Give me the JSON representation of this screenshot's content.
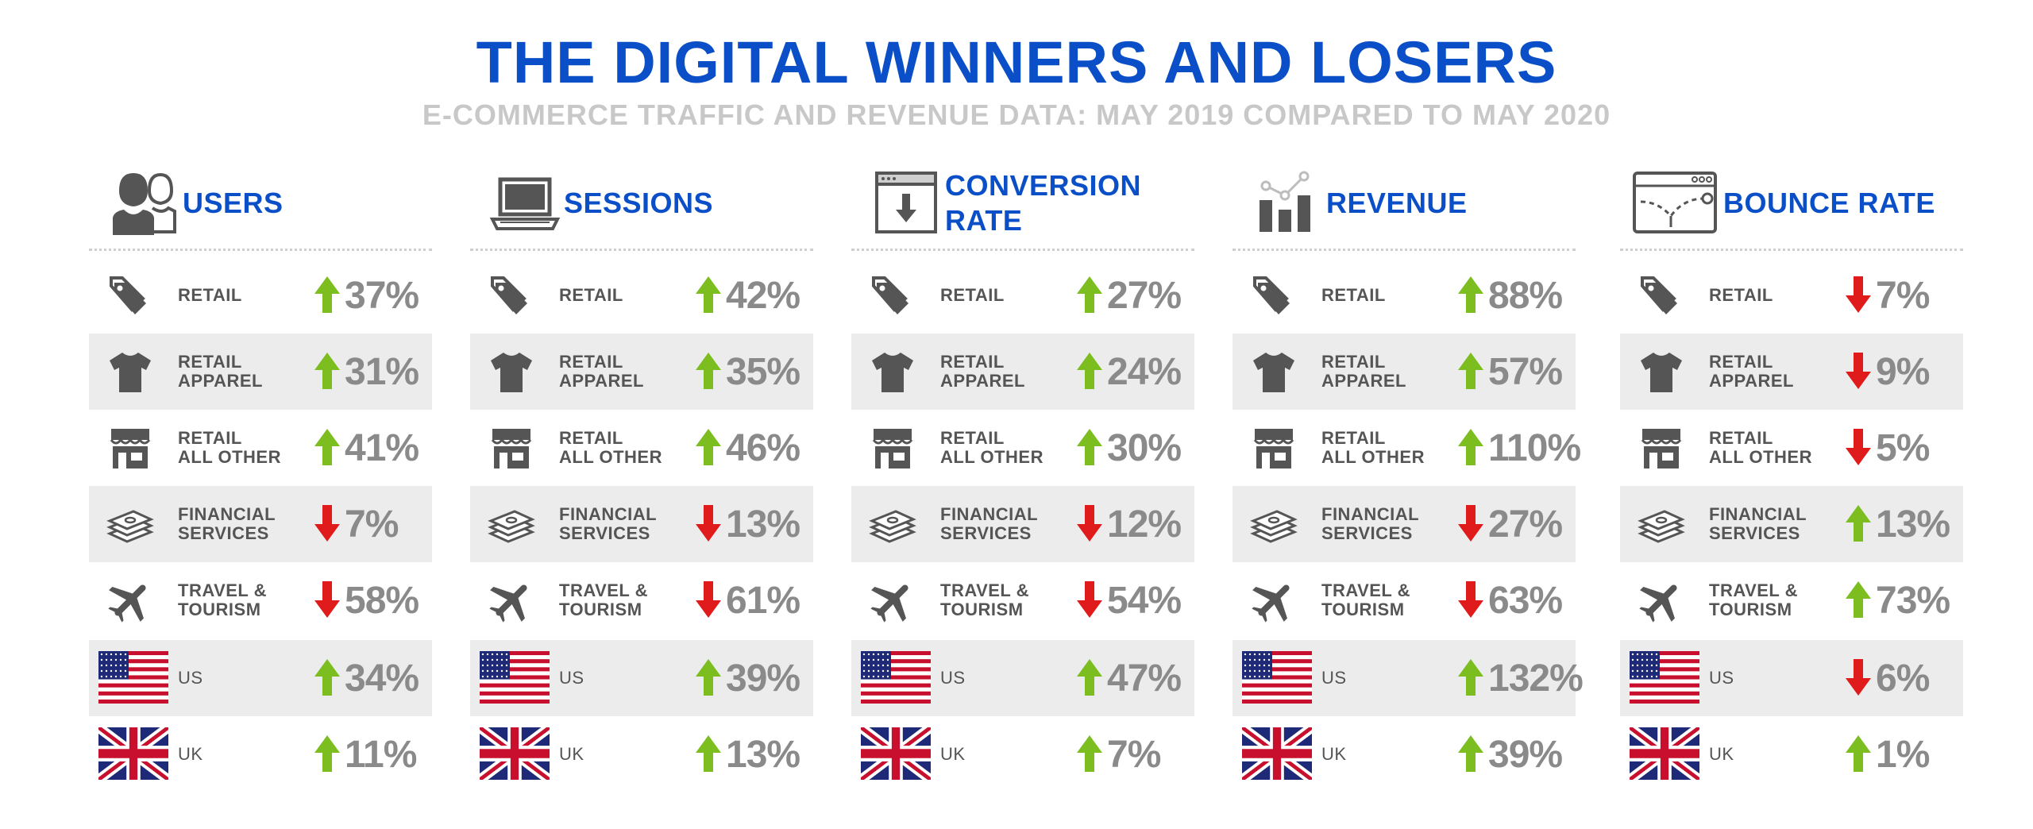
{
  "header": {
    "title": "THE DIGITAL WINNERS AND LOSERS",
    "subtitle": "E-COMMERCE TRAFFIC AND REVENUE DATA: MAY 2019 COMPARED TO MAY 2020"
  },
  "colors": {
    "accent": "#0a4fc7",
    "up": "#7cbd1f",
    "down": "#e01b1b",
    "value": "#8a8a8a",
    "icon": "#555555",
    "shade": "#ececec"
  },
  "categories": [
    {
      "label": "RETAIL",
      "icon": "tag-icon"
    },
    {
      "label": "RETAIL\nAPPAREL",
      "icon": "tshirt-icon"
    },
    {
      "label": "RETAIL\nALL OTHER",
      "icon": "storefront-icon"
    },
    {
      "label": "FINANCIAL\nSERVICES",
      "icon": "money-stack-icon"
    },
    {
      "label": "TRAVEL &\nTOURISM",
      "icon": "airplane-icon"
    },
    {
      "label": "US",
      "icon": "us-flag-icon"
    },
    {
      "label": "UK",
      "icon": "uk-flag-icon"
    }
  ],
  "chart_data": {
    "type": "table",
    "title": "THE DIGITAL WINNERS AND LOSERS",
    "subtitle": "E-COMMERCE TRAFFIC AND REVENUE DATA: MAY 2019 COMPARED TO MAY 2020",
    "rows": [
      "RETAIL",
      "RETAIL APPAREL",
      "RETAIL ALL OTHER",
      "FINANCIAL SERVICES",
      "TRAVEL & TOURISM",
      "US",
      "UK"
    ],
    "metrics": [
      {
        "name": "USERS",
        "icon": "users-icon",
        "values": [
          "37%",
          "31%",
          "41%",
          "7%",
          "58%",
          "34%",
          "11%"
        ],
        "directions": [
          "up",
          "up",
          "up",
          "down",
          "down",
          "up",
          "up"
        ]
      },
      {
        "name": "SESSIONS",
        "icon": "laptop-icon",
        "values": [
          "42%",
          "35%",
          "46%",
          "13%",
          "61%",
          "39%",
          "13%"
        ],
        "directions": [
          "up",
          "up",
          "up",
          "down",
          "down",
          "up",
          "up"
        ]
      },
      {
        "name": "CONVERSION\nRATE",
        "icon": "download-window-icon",
        "values": [
          "27%",
          "24%",
          "30%",
          "12%",
          "54%",
          "47%",
          "7%"
        ],
        "directions": [
          "up",
          "up",
          "up",
          "down",
          "down",
          "up",
          "up"
        ]
      },
      {
        "name": "REVENUE",
        "icon": "bar-chart-icon",
        "values": [
          "88%",
          "57%",
          "110%",
          "27%",
          "63%",
          "132%",
          "39%"
        ],
        "directions": [
          "up",
          "up",
          "up",
          "down",
          "down",
          "up",
          "up"
        ]
      },
      {
        "name": "BOUNCE RATE",
        "icon": "browser-bounce-icon",
        "values": [
          "7%",
          "9%",
          "5%",
          "13%",
          "73%",
          "6%",
          "1%"
        ],
        "directions": [
          "down",
          "down",
          "down",
          "up",
          "up",
          "down",
          "up"
        ]
      }
    ]
  }
}
